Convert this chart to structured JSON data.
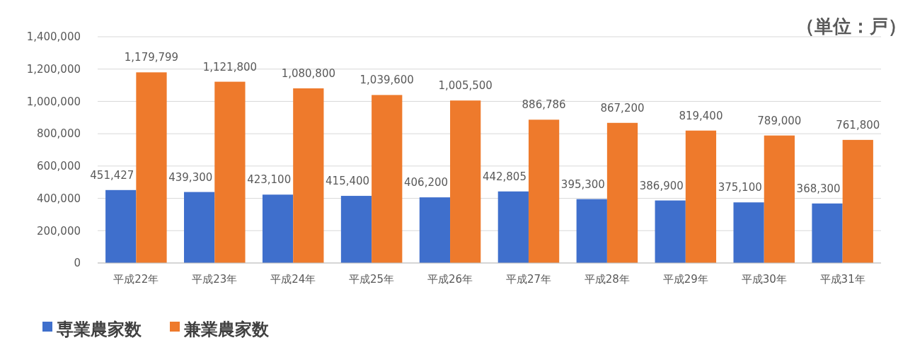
{
  "chart_data": {
    "type": "bar",
    "annotations": [
      "（単位：戸）"
    ],
    "categories": [
      "平成22年",
      "平成23年",
      "平成24年",
      "平成25年",
      "平成26年",
      "平成27年",
      "平成28年",
      "平成29年",
      "平成30年",
      "平成31年"
    ],
    "series": [
      {
        "name": "専業農家数",
        "color": "#3f6fcc",
        "values": [
          451427,
          439300,
          423100,
          415400,
          406200,
          442805,
          395300,
          386900,
          375100,
          368300
        ],
        "value_labels": [
          "451,427",
          "439,300",
          "423,100",
          "415,400",
          "406,200",
          "442,805",
          "395,300",
          "386,900",
          "375,100",
          "368,300"
        ]
      },
      {
        "name": "兼業農家数",
        "color": "#ee7a2c",
        "values": [
          1179799,
          1121800,
          1080800,
          1039600,
          1005500,
          886786,
          867200,
          819400,
          789000,
          761800
        ],
        "value_labels": [
          "1,179,799",
          "1,121,800",
          "1,080,800",
          "1,039,600",
          "1,005,500",
          "886,786",
          "867,200",
          "819,400",
          "789,000",
          "761,800"
        ]
      }
    ],
    "ylim": [
      0,
      1400000
    ],
    "yticks": [
      {
        "value": 0,
        "label": "0"
      },
      {
        "value": 200000,
        "label": "200,000"
      },
      {
        "value": 400000,
        "label": "400,000"
      },
      {
        "value": 600000,
        "label": "600,000"
      },
      {
        "value": 800000,
        "label": "800,000"
      },
      {
        "value": 1000000,
        "label": "1,000,000"
      },
      {
        "value": 1200000,
        "label": "1,200,000"
      },
      {
        "value": 1400000,
        "label": "1,400,000"
      }
    ],
    "grid": "y",
    "legend": "bottom"
  }
}
